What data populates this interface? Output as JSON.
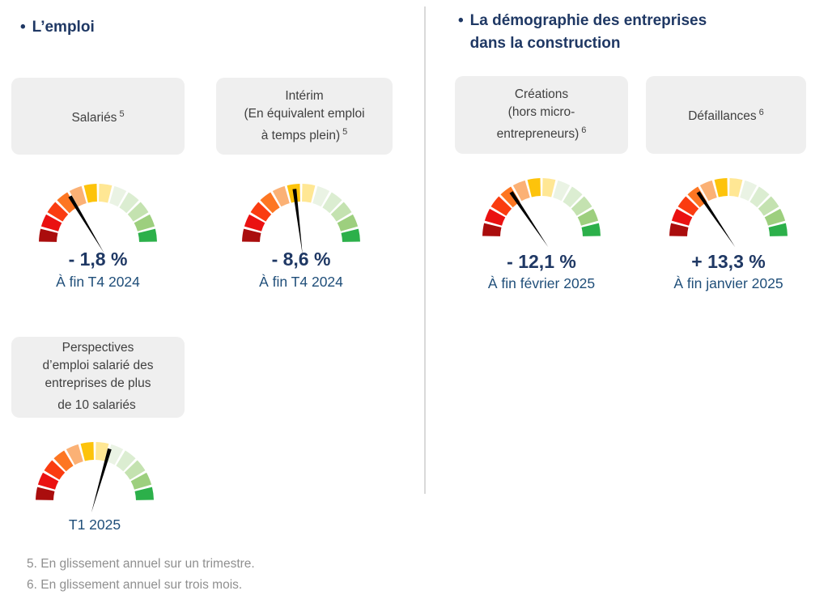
{
  "page": {
    "background": "#ffffff",
    "divider_color": "#d9d9d9",
    "title_color": "#1f3864",
    "value_color": "#1f3864",
    "caption_color": "#1f4e79",
    "card_bg": "#efefef",
    "card_text_color": "#404040",
    "footnote_color": "#8f8f8f"
  },
  "sections": {
    "left": {
      "bullet": "•",
      "title": "L’emploi"
    },
    "right": {
      "bullet": "•",
      "title": "La démographie des entreprises\ndans la construction"
    }
  },
  "gauge": {
    "segment_colors": [
      "#aa0d0d",
      "#ea1111",
      "#fa3c10",
      "#fd7622",
      "#fbb175",
      "#fdc30b",
      "#ffe794",
      "#eaf3e4",
      "#dbedd1",
      "#c4e2b0",
      "#9dcf7e",
      "#2cb04a"
    ],
    "needle_color": "#000000"
  },
  "panels": [
    {
      "id": "salaries",
      "card_text": "Salariés",
      "card_sup": "5",
      "value": "- 1,8 %",
      "caption": "À fin T4 2024",
      "needle_deg": 121
    },
    {
      "id": "interim",
      "card_text": "Intérim\n(En équivalent emploi\nà temps plein)",
      "card_sup": "5",
      "value": "- 8,6 %",
      "caption": "À fin T4 2024",
      "needle_deg": 97
    },
    {
      "id": "creations",
      "card_text": "Créations\n(hors micro-\nentrepreneurs)",
      "card_sup": "6",
      "value": "- 12,1 %",
      "caption": "À fin février 2025",
      "needle_deg": 124
    },
    {
      "id": "defaillances",
      "card_text": "Défaillances",
      "card_sup": "6",
      "value": "+ 13,3 %",
      "caption": "À fin janvier 2025",
      "needle_deg": 124
    },
    {
      "id": "perspectives",
      "card_text": "Perspectives\nd’emploi salarié des\nentreprises de plus\nde 10 salariés",
      "card_sup": "",
      "value": "",
      "caption": "T1 2025",
      "needle_deg": 74
    }
  ],
  "footnotes": [
    "5. En glissement annuel sur un trimestre.",
    "6. En glissement annuel sur trois mois."
  ],
  "chart_data": [
    {
      "type": "gauge",
      "title": "Salariés",
      "value_pct": -1.8,
      "value_label": "- 1,8 %",
      "period": "À fin T4 2024",
      "scale": "semicircle, 12 segments from dark red (left/negative) to green (right/positive)",
      "needle_zone": "orange"
    },
    {
      "type": "gauge",
      "title": "Intérim (En équivalent emploi à temps plein)",
      "value_pct": -8.6,
      "value_label": "- 8,6 %",
      "period": "À fin T4 2024",
      "scale": "semicircle, 12 segments from dark red (left/negative) to green (right/positive)",
      "needle_zone": "gold-yellow, just left of vertical"
    },
    {
      "type": "gauge",
      "title": "Créations (hors micro-entrepreneurs)",
      "value_pct": -12.1,
      "value_label": "- 12,1 %",
      "period": "À fin février 2025",
      "scale": "semicircle, 12 segments from dark red (left/negative) to green (right/positive)",
      "needle_zone": "orange"
    },
    {
      "type": "gauge",
      "title": "Défaillances",
      "value_pct": 13.3,
      "value_label": "+ 13,3 %",
      "period": "À fin janvier 2025",
      "scale": "semicircle, 12 segments from dark red (left/bad) to green (right/good)",
      "needle_zone": "orange"
    },
    {
      "type": "gauge",
      "title": "Perspectives d’emploi salarié des entreprises de plus de 10 salariés",
      "value_pct": null,
      "value_label": "",
      "period": "T1 2025",
      "scale": "semicircle, 12 segments from dark red (left) to green (right)",
      "needle_zone": "pale yellow / light green, just right of vertical"
    }
  ]
}
